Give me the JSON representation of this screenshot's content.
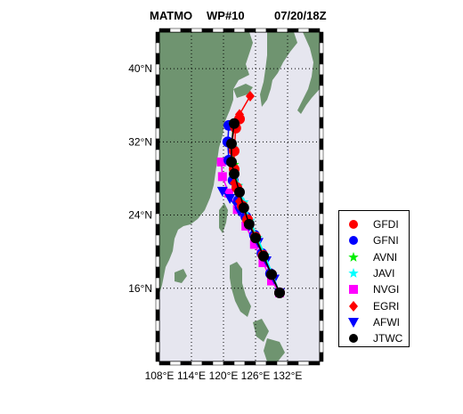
{
  "title": {
    "storm": "MATMO",
    "advisory": "WP#10",
    "datetime": "07/20/18Z"
  },
  "axes": {
    "lat_ticks": [
      {
        "value": 40,
        "label": "40°N"
      },
      {
        "value": 32,
        "label": "32°N"
      },
      {
        "value": 24,
        "label": "24°N"
      },
      {
        "value": 16,
        "label": "16°N"
      }
    ],
    "lon_ticks": [
      {
        "value": 108,
        "label": "108°E"
      },
      {
        "value": 114,
        "label": "114°E"
      },
      {
        "value": 120,
        "label": "120°E"
      },
      {
        "value": 126,
        "label": "126°E"
      },
      {
        "value": 132,
        "label": "132°E"
      }
    ],
    "lon_range": [
      108,
      138
    ],
    "lat_range": [
      8,
      44
    ]
  },
  "colors": {
    "land": "#6f9470",
    "sea": "#e6e6ef",
    "frame": "#000000"
  },
  "legend": [
    {
      "key": "GFDI",
      "label": "GFDI",
      "marker": "circle",
      "color": "#ff0000"
    },
    {
      "key": "GFNI",
      "label": "GFNI",
      "marker": "circle",
      "color": "#0000ff"
    },
    {
      "key": "AVNI",
      "label": "AVNI",
      "marker": "star",
      "color": "#00ee00"
    },
    {
      "key": "JAVI",
      "label": "JAVI",
      "marker": "star",
      "color": "#00ffff"
    },
    {
      "key": "NVGI",
      "label": "NVGI",
      "marker": "square",
      "color": "#ff00ff"
    },
    {
      "key": "EGRI",
      "label": "EGRI",
      "marker": "diamond",
      "color": "#ff0000"
    },
    {
      "key": "AFWI",
      "label": "AFWI",
      "marker": "triangle-down",
      "color": "#0000ff"
    },
    {
      "key": "JTWC",
      "label": "JTWC",
      "marker": "circle",
      "color": "#000000"
    }
  ],
  "chart_data": {
    "type": "map-tracks",
    "tracks": [
      {
        "key": "EGRI",
        "points": [
          [
            130.5,
            15.5
          ],
          [
            129,
            17.5
          ],
          [
            127.5,
            19.5
          ],
          [
            126,
            21.5
          ],
          [
            124.5,
            23.5
          ],
          [
            123,
            25.5
          ],
          [
            122,
            27.5
          ],
          [
            121.5,
            29.5
          ],
          [
            121.5,
            31.5
          ],
          [
            122,
            33.5
          ],
          [
            123,
            35
          ],
          [
            125,
            37
          ]
        ]
      },
      {
        "key": "JTWC",
        "points": [
          [
            130.5,
            15.5
          ],
          [
            129,
            17.5
          ],
          [
            127.5,
            19.5
          ],
          [
            126,
            21.5
          ],
          [
            124.8,
            23
          ],
          [
            123.8,
            24.8
          ],
          [
            123,
            26.5
          ],
          [
            122,
            28.5
          ],
          [
            121.5,
            29.8
          ],
          [
            121.5,
            31.8
          ],
          [
            122,
            34
          ]
        ]
      },
      {
        "key": "GFDI",
        "points": [
          [
            130.5,
            15.5
          ],
          [
            129,
            17.5
          ],
          [
            127.4,
            19.6
          ],
          [
            126,
            21.6
          ],
          [
            124.5,
            23.5
          ],
          [
            123.5,
            25
          ],
          [
            122.5,
            27
          ],
          [
            122,
            29
          ],
          [
            122,
            31
          ],
          [
            122.3,
            33.5
          ],
          [
            123,
            34.5
          ]
        ]
      },
      {
        "key": "GFNI",
        "points": [
          [
            130.5,
            15.5
          ],
          [
            128.8,
            17.6
          ],
          [
            127.2,
            19.8
          ],
          [
            125.8,
            21.8
          ],
          [
            124.2,
            23.8
          ],
          [
            122.8,
            25.6
          ],
          [
            121.8,
            27.8
          ],
          [
            121,
            30
          ],
          [
            120.8,
            32
          ],
          [
            121,
            33.8
          ]
        ]
      },
      {
        "key": "AVNI",
        "points": [
          [
            130.5,
            15.5
          ],
          [
            129,
            17.5
          ],
          [
            127.6,
            19.4
          ],
          [
            126.2,
            21.5
          ],
          [
            124.8,
            23.2
          ],
          [
            123.6,
            25.2
          ],
          [
            122.6,
            27.2
          ],
          [
            122,
            29.5
          ],
          [
            121.6,
            31.6
          ],
          [
            121.8,
            34
          ]
        ]
      },
      {
        "key": "JAVI",
        "points": [
          [
            130.5,
            15.5
          ],
          [
            129.2,
            17.5
          ],
          [
            127.8,
            19.6
          ],
          [
            126.4,
            21.5
          ],
          [
            125,
            23.4
          ],
          [
            123.8,
            25.4
          ],
          [
            122.8,
            27.2
          ],
          [
            122,
            29.2
          ],
          [
            121.8,
            31.4
          ]
        ]
      },
      {
        "key": "NVGI",
        "points": [
          [
            130.5,
            15.5
          ],
          [
            129,
            16.8
          ],
          [
            127.4,
            18.8
          ],
          [
            125.8,
            20.8
          ],
          [
            124.2,
            22.8
          ],
          [
            122.6,
            24.6
          ],
          [
            121,
            26.4
          ],
          [
            119.8,
            28.2
          ],
          [
            119.6,
            29.8
          ]
        ]
      },
      {
        "key": "AFWI",
        "points": [
          [
            130.5,
            15.5
          ],
          [
            129.5,
            17
          ],
          [
            128,
            19
          ],
          [
            126.5,
            21
          ],
          [
            124.8,
            22.8
          ],
          [
            123,
            24.4
          ],
          [
            121.2,
            25.8
          ],
          [
            119.8,
            26.6
          ]
        ]
      }
    ]
  }
}
